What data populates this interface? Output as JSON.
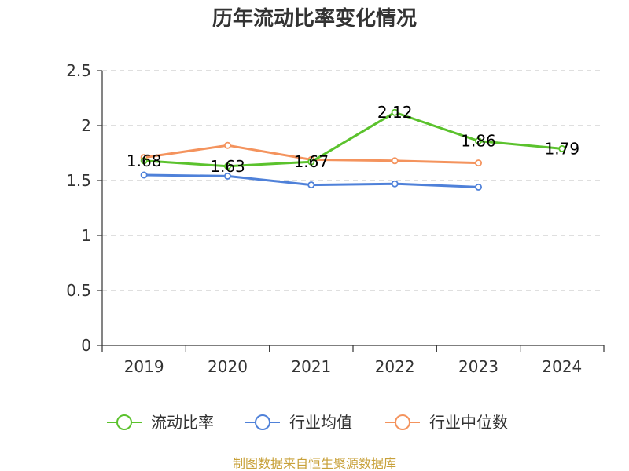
{
  "chart_data": {
    "type": "line",
    "title": "历年流动比率变化情况",
    "categories": [
      "2019",
      "2020",
      "2021",
      "2022",
      "2023",
      "2024"
    ],
    "ylim": [
      0,
      2.5
    ],
    "yticks": [
      "0",
      "0.5",
      "1",
      "1.5",
      "2",
      "2.5"
    ],
    "grid": true,
    "legend_position": "bottom",
    "series": [
      {
        "name": "流动比率",
        "color": "#5bc22d",
        "values": [
          1.68,
          1.63,
          1.67,
          2.12,
          1.86,
          1.79
        ],
        "labels": [
          "1.68",
          "1.63",
          "1.67",
          "2.12",
          "1.86",
          "1.79"
        ]
      },
      {
        "name": "行业均值",
        "color": "#4f81d9",
        "values": [
          1.55,
          1.54,
          1.46,
          1.47,
          1.44,
          null
        ]
      },
      {
        "name": "行业中位数",
        "color": "#f4935d",
        "values": [
          1.71,
          1.82,
          1.69,
          1.68,
          1.66,
          null
        ]
      }
    ]
  },
  "source": "制图数据来自恒生聚源数据库"
}
